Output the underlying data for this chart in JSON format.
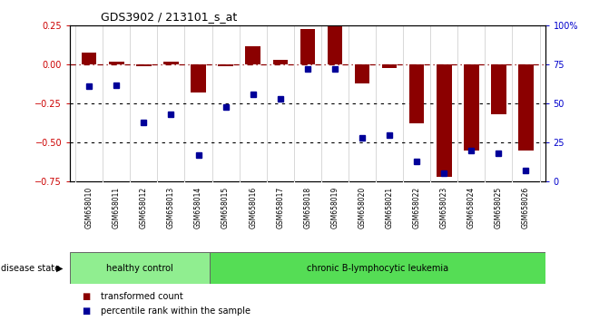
{
  "title": "GDS3902 / 213101_s_at",
  "samples": [
    "GSM658010",
    "GSM658011",
    "GSM658012",
    "GSM658013",
    "GSM658014",
    "GSM658015",
    "GSM658016",
    "GSM658017",
    "GSM658018",
    "GSM658019",
    "GSM658020",
    "GSM658021",
    "GSM658022",
    "GSM658023",
    "GSM658024",
    "GSM658025",
    "GSM658026"
  ],
  "bar_values": [
    0.08,
    0.02,
    -0.01,
    0.02,
    -0.18,
    -0.01,
    0.12,
    0.03,
    0.23,
    0.25,
    -0.12,
    -0.02,
    -0.38,
    -0.72,
    -0.55,
    -0.32,
    -0.55
  ],
  "dot_values": [
    -0.14,
    -0.13,
    -0.37,
    -0.32,
    -0.58,
    -0.27,
    -0.19,
    -0.22,
    -0.03,
    -0.03,
    -0.47,
    -0.45,
    -0.62,
    -0.7,
    -0.55,
    -0.57,
    -0.68
  ],
  "bar_color": "#8B0000",
  "dot_color": "#000099",
  "healthy_label": "healthy control",
  "leukemia_label": "chronic B-lymphocytic leukemia",
  "disease_state_label": "disease state",
  "healthy_color": "#90EE90",
  "leukemia_color": "#55DD55",
  "healthy_count": 5,
  "leukemia_count": 12,
  "ylim_left": [
    -0.75,
    0.25
  ],
  "yticks_left": [
    -0.75,
    -0.5,
    -0.25,
    0.0,
    0.25
  ],
  "ylim_right": [
    0,
    100
  ],
  "yticks_right": [
    0,
    25,
    50,
    75,
    100
  ],
  "ytick_labels_right": [
    "0",
    "25",
    "50",
    "75",
    "100%"
  ],
  "legend_bar": "transformed count",
  "legend_dot": "percentile rank within the sample",
  "hline_y": 0.0,
  "dotted_lines": [
    -0.25,
    -0.5
  ],
  "bar_width": 0.55,
  "background_color": "#ffffff",
  "tick_color_left": "#cc0000",
  "tick_color_right": "#0000cc",
  "xticklabel_bg": "#dddddd"
}
